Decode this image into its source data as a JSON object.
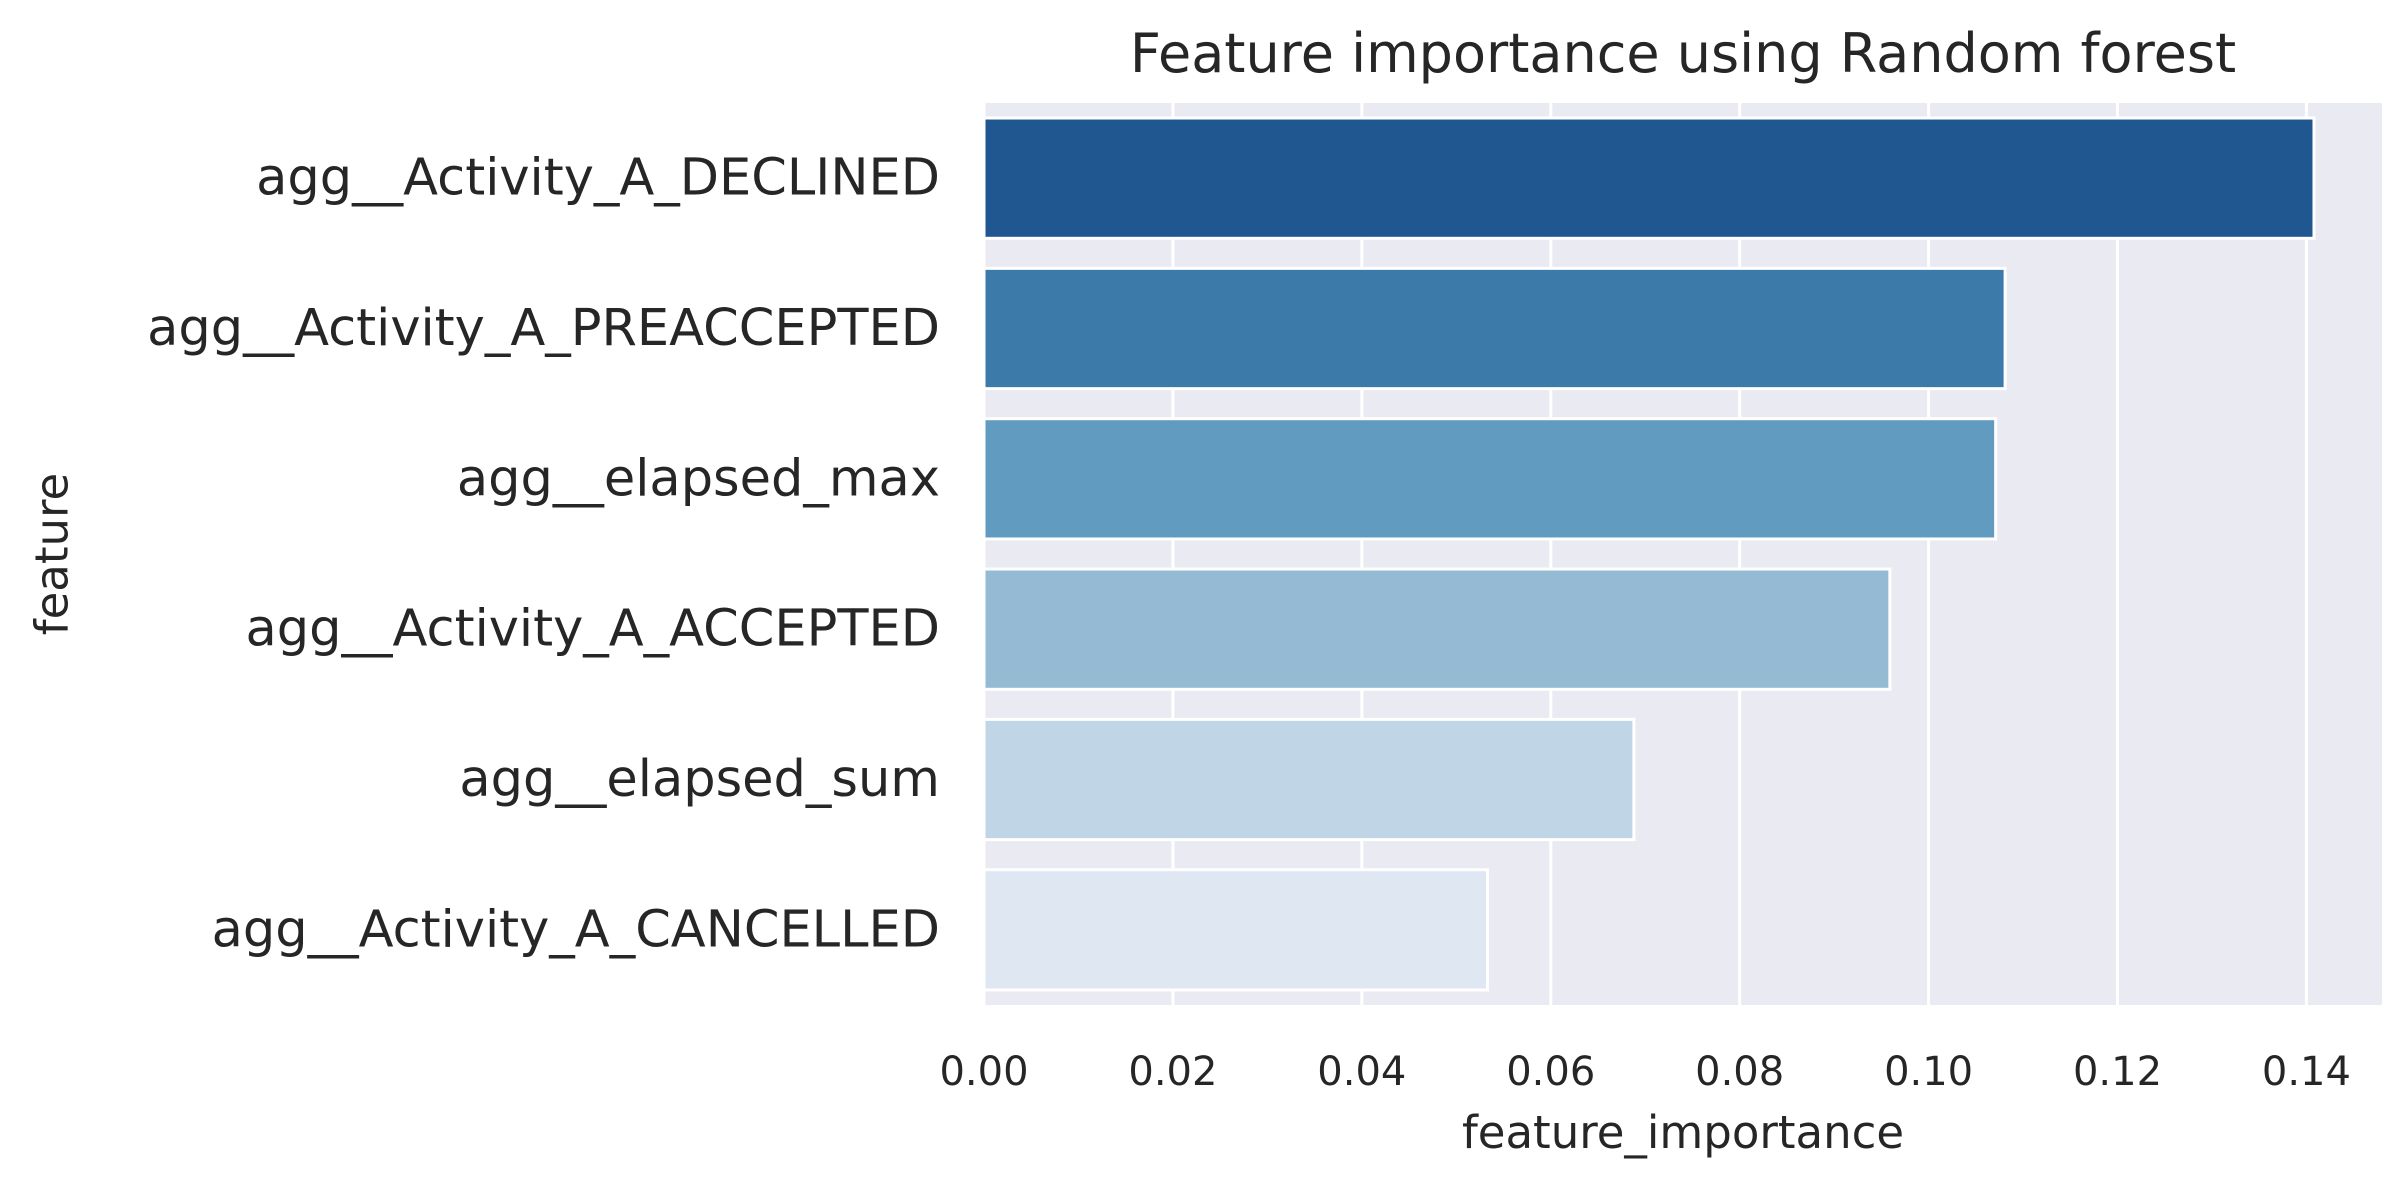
{
  "chart_data": {
    "type": "bar",
    "orientation": "horizontal",
    "title": "Feature importance using Random forest",
    "xlabel": "feature_importance",
    "ylabel": "feature",
    "categories": [
      "agg__Activity_A_DECLINED",
      "agg__Activity_A_PREACCEPTED",
      "agg__elapsed_max",
      "agg__Activity_A_ACCEPTED",
      "agg__elapsed_sum",
      "agg__Activity_A_CANCELLED"
    ],
    "values": [
      0.1408,
      0.1081,
      0.1071,
      0.0959,
      0.0688,
      0.0533
    ],
    "colors": [
      "#215790",
      "#3c7aaa",
      "#629bc0",
      "#94bbd3",
      "#c0d6e6",
      "#deE7f2"
    ],
    "xlim": [
      0,
      0.148
    ],
    "xticks": [
      0,
      0.02,
      0.04,
      0.06,
      0.08,
      0.1,
      0.12,
      0.14
    ],
    "xtick_labels": [
      "0.00",
      "0.02",
      "0.04",
      "0.06",
      "0.08",
      "0.10",
      "0.12",
      "0.14"
    ],
    "grid": true,
    "background_color": "#eaeaf2",
    "grid_color": "#ffffff"
  }
}
